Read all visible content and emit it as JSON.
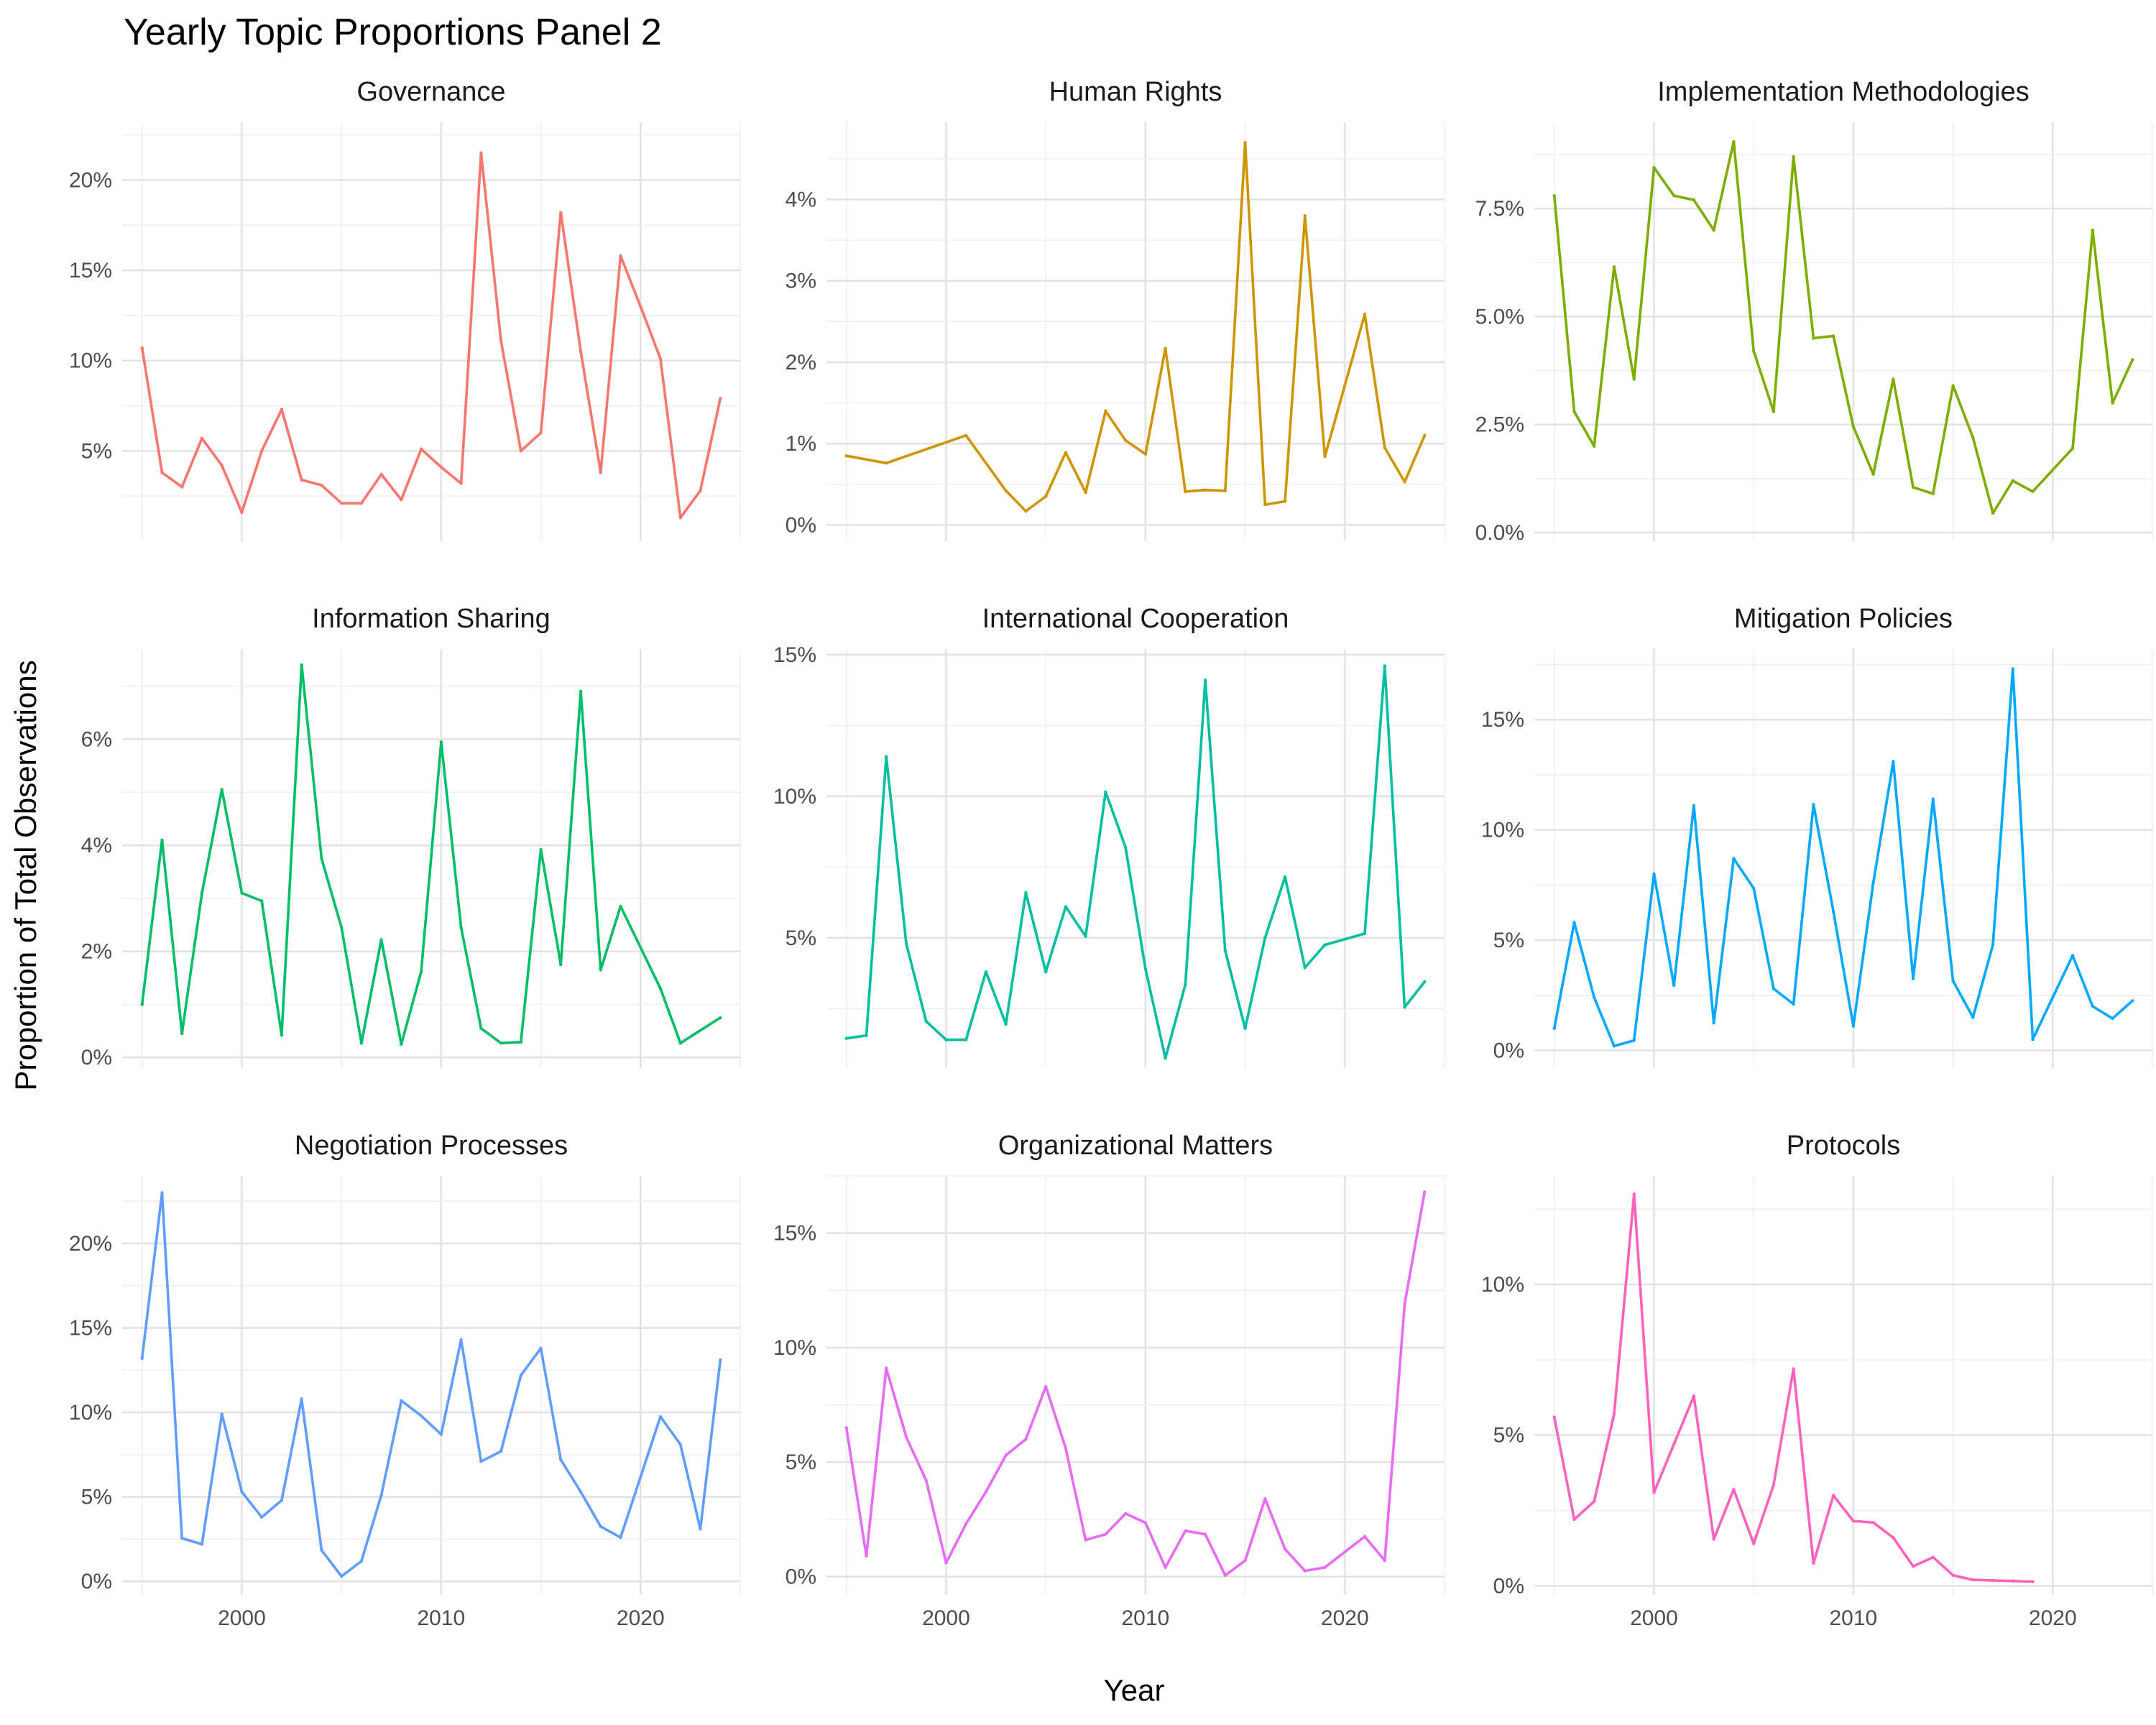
{
  "title": "Yearly Topic Proportions Panel 2",
  "xlabel": "Year",
  "ylabel": "Proportion of Total Observations",
  "chart_data": {
    "type": "line",
    "title": "Yearly Topic Proportions Panel 2",
    "xlabel": "Year",
    "ylabel": "Proportion of Total Observations",
    "xlim": [
      1994,
      2025
    ],
    "x_ticks": [
      2000,
      2010,
      2020
    ],
    "x_tick_labels": [
      "2000",
      "2010",
      "2020"
    ],
    "grid": true,
    "legend": "none",
    "facets": [
      {
        "name": "Governance",
        "color": "#F8766D",
        "ylim": [
          0,
          23.2
        ],
        "yticks": [
          5,
          10,
          15,
          20
        ],
        "ytick_labels": [
          "5%",
          "10%",
          "15%",
          "20%"
        ],
        "x": [
          1995,
          1996,
          1997,
          1998,
          1999,
          2000,
          2001,
          2002,
          2003,
          2004,
          2005,
          2006,
          2007,
          2008,
          2009,
          2010,
          2011,
          2012,
          2013,
          2014,
          2015,
          2016,
          2017,
          2018,
          2019,
          2020,
          2021,
          2022,
          2023,
          2024
        ],
        "values": [
          10.7,
          3.8,
          3.0,
          5.7,
          4.2,
          1.6,
          5.0,
          7.3,
          3.4,
          3.1,
          2.1,
          2.1,
          3.7,
          2.3,
          5.1,
          4.1,
          3.2,
          21.5,
          11.1,
          5.0,
          6.0,
          18.2,
          10.5,
          3.8,
          15.8,
          13.0,
          10.1,
          1.3,
          2.8,
          7.9
        ]
      },
      {
        "name": "Human Rights",
        "color": "#CD9600",
        "ylim": [
          -0.2,
          4.95
        ],
        "yticks": [
          0,
          1,
          2,
          3,
          4
        ],
        "ytick_labels": [
          "0%",
          "1%",
          "2%",
          "3%",
          "4%"
        ],
        "x": [
          1995,
          1997,
          2001,
          2003,
          2004,
          2005,
          2006,
          2007,
          2008,
          2009,
          2010,
          2011,
          2012,
          2013,
          2014,
          2015,
          2016,
          2017,
          2018,
          2019,
          2021,
          2022,
          2023,
          2024
        ],
        "values": [
          0.85,
          0.76,
          1.1,
          0.42,
          0.17,
          0.35,
          0.89,
          0.4,
          1.4,
          1.04,
          0.87,
          2.17,
          0.41,
          0.43,
          0.42,
          4.7,
          0.25,
          0.29,
          3.8,
          0.84,
          2.59,
          0.95,
          0.53,
          1.1
        ]
      },
      {
        "name": "Implementation Methodologies",
        "color": "#7CAE00",
        "ylim": [
          -0.2,
          9.5
        ],
        "yticks": [
          0,
          2.5,
          5,
          7.5
        ],
        "ytick_labels": [
          "0.0%",
          "2.5%",
          "5.0%",
          "7.5%"
        ],
        "x": [
          1995,
          1996,
          1997,
          1998,
          1999,
          2000,
          2001,
          2002,
          2003,
          2004,
          2005,
          2006,
          2007,
          2008,
          2009,
          2010,
          2011,
          2012,
          2013,
          2014,
          2015,
          2016,
          2017,
          2018,
          2019,
          2021,
          2022,
          2023,
          2024
        ],
        "values": [
          7.8,
          2.8,
          2.0,
          6.15,
          3.55,
          8.45,
          7.8,
          7.7,
          7.0,
          9.05,
          4.2,
          2.8,
          8.7,
          4.5,
          4.55,
          2.45,
          1.35,
          3.55,
          1.05,
          0.9,
          3.4,
          2.2,
          0.45,
          1.2,
          0.95,
          1.95,
          7.0,
          3.0,
          4.0
        ]
      },
      {
        "name": "Information Sharing",
        "color": "#00BE67",
        "ylim": [
          -0.2,
          7.7
        ],
        "yticks": [
          0,
          2,
          4,
          6
        ],
        "ytick_labels": [
          "0%",
          "2%",
          "4%",
          "6%"
        ],
        "x": [
          1995,
          1996,
          1997,
          1998,
          1999,
          2000,
          2001,
          2002,
          2003,
          2004,
          2005,
          2006,
          2007,
          2008,
          2009,
          2010,
          2011,
          2012,
          2013,
          2014,
          2015,
          2016,
          2017,
          2018,
          2019,
          2021,
          2022,
          2024
        ],
        "values": [
          1.0,
          4.1,
          0.45,
          3.1,
          5.05,
          3.1,
          2.95,
          0.42,
          7.4,
          3.75,
          2.45,
          0.27,
          2.22,
          0.25,
          1.62,
          5.95,
          2.45,
          0.55,
          0.27,
          0.29,
          3.92,
          1.75,
          6.9,
          1.65,
          2.85,
          1.3,
          0.27,
          0.75
        ]
      },
      {
        "name": "International Cooperation",
        "color": "#00BFA0",
        "ylim": [
          0.4,
          15.2
        ],
        "yticks": [
          5,
          10,
          15
        ],
        "ytick_labels": [
          "5%",
          "10%",
          "15%"
        ],
        "x": [
          1995,
          1996,
          1997,
          1998,
          1999,
          2000,
          2001,
          2002,
          2003,
          2004,
          2005,
          2006,
          2007,
          2008,
          2009,
          2010,
          2011,
          2012,
          2013,
          2014,
          2015,
          2016,
          2017,
          2018,
          2019,
          2021,
          2022,
          2023,
          2024
        ],
        "values": [
          1.45,
          1.55,
          11.4,
          4.8,
          2.05,
          1.4,
          1.4,
          3.8,
          1.95,
          6.6,
          3.8,
          6.1,
          5.05,
          10.15,
          8.2,
          3.9,
          0.75,
          3.35,
          14.1,
          4.55,
          1.8,
          5.0,
          7.15,
          3.95,
          4.75,
          5.15,
          14.6,
          2.55,
          3.45
        ]
      },
      {
        "name": "Mitigation Policies",
        "color": "#00A9FF",
        "ylim": [
          -0.8,
          18.2
        ],
        "yticks": [
          0,
          5,
          10,
          15
        ],
        "ytick_labels": [
          "0%",
          "5%",
          "10%",
          "15%"
        ],
        "x": [
          1995,
          1996,
          1997,
          1998,
          1999,
          2000,
          2001,
          2002,
          2003,
          2004,
          2005,
          2006,
          2007,
          2008,
          2009,
          2010,
          2011,
          2012,
          2013,
          2014,
          2015,
          2016,
          2017,
          2018,
          2019,
          2021,
          2022,
          2023,
          2024
        ],
        "values": [
          1.0,
          5.8,
          2.4,
          0.2,
          0.45,
          8.0,
          2.95,
          11.1,
          1.25,
          8.7,
          7.35,
          2.8,
          2.1,
          11.15,
          6.3,
          1.1,
          7.6,
          13.1,
          3.25,
          11.4,
          3.15,
          1.5,
          4.8,
          17.3,
          0.5,
          4.3,
          2.0,
          1.45,
          2.25
        ]
      },
      {
        "name": "Negotiation Processes",
        "color": "#619CFF",
        "ylim": [
          -0.8,
          24.0
        ],
        "yticks": [
          0,
          5,
          10,
          15,
          20
        ],
        "ytick_labels": [
          "0%",
          "5%",
          "10%",
          "15%",
          "20%"
        ],
        "x": [
          1995,
          1996,
          1997,
          1998,
          1999,
          2000,
          2001,
          2002,
          2003,
          2004,
          2005,
          2006,
          2007,
          2008,
          2009,
          2010,
          2011,
          2012,
          2013,
          2014,
          2015,
          2016,
          2017,
          2018,
          2019,
          2021,
          2022,
          2023,
          2024
        ],
        "values": [
          13.2,
          23.0,
          2.55,
          2.2,
          9.9,
          5.3,
          3.8,
          4.8,
          10.8,
          1.85,
          0.3,
          1.2,
          5.1,
          10.7,
          9.8,
          8.7,
          14.3,
          7.1,
          7.7,
          12.2,
          13.8,
          7.2,
          5.3,
          3.25,
          2.6,
          9.75,
          8.1,
          3.1,
          13.1
        ]
      },
      {
        "name": "Organizational Matters",
        "color": "#E76BF3",
        "ylim": [
          -0.8,
          17.5
        ],
        "yticks": [
          0,
          5,
          10,
          15
        ],
        "ytick_labels": [
          "0%",
          "5%",
          "10%",
          "15%"
        ],
        "x": [
          1995,
          1996,
          1997,
          1998,
          1999,
          2000,
          2001,
          2002,
          2003,
          2004,
          2005,
          2006,
          2007,
          2008,
          2009,
          2010,
          2011,
          2012,
          2013,
          2014,
          2015,
          2016,
          2017,
          2018,
          2019,
          2021,
          2022,
          2023,
          2024
        ],
        "values": [
          6.5,
          0.9,
          9.1,
          6.1,
          4.2,
          0.6,
          2.3,
          3.7,
          5.3,
          6.0,
          8.3,
          5.6,
          1.6,
          1.85,
          2.75,
          2.35,
          0.4,
          2.0,
          1.85,
          0.05,
          0.7,
          3.4,
          1.2,
          0.25,
          0.4,
          1.75,
          0.7,
          11.9,
          16.8
        ]
      },
      {
        "name": "Protocols",
        "color": "#FF62BC",
        "ylim": [
          -0.3,
          13.6
        ],
        "yticks": [
          0,
          5,
          10
        ],
        "ytick_labels": [
          "0%",
          "5%",
          "10%"
        ],
        "x": [
          1995,
          1996,
          1997,
          1998,
          1999,
          2000,
          2001,
          2002,
          2003,
          2004,
          2005,
          2006,
          2007,
          2008,
          2009,
          2010,
          2011,
          2012,
          2013,
          2014,
          2015,
          2016,
          2017,
          2018,
          2019
        ],
        "values": [
          5.6,
          2.2,
          2.8,
          5.7,
          13.0,
          3.1,
          4.7,
          6.3,
          1.55,
          3.2,
          1.4,
          3.35,
          7.2,
          0.75,
          3.0,
          2.15,
          2.1,
          1.6,
          0.65,
          0.95,
          0.35,
          0.2,
          0.18,
          0.16,
          0.14
        ]
      }
    ]
  }
}
